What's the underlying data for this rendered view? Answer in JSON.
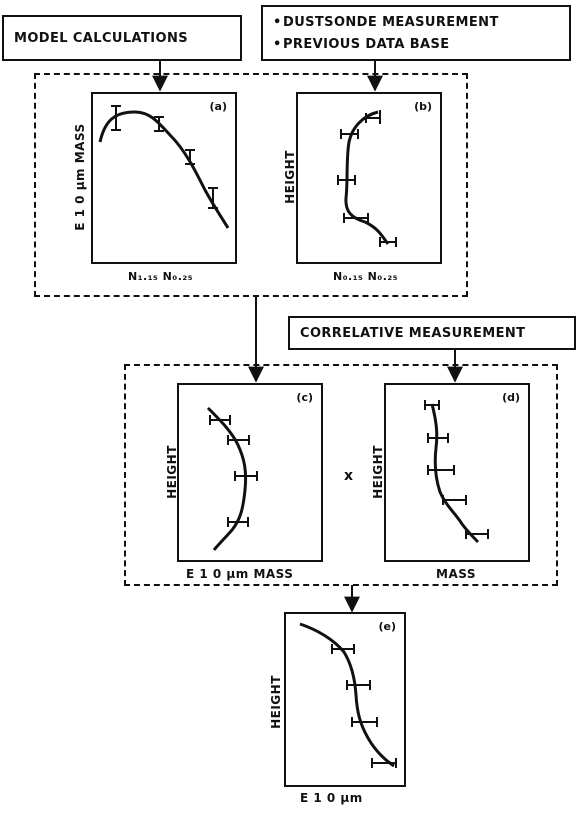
{
  "inputs": {
    "model_calculations": "MODEL CALCULATIONS",
    "dustsonde": {
      "items": [
        "DUSTSONDE MEASUREMENT",
        "PREVIOUS DATA BASE"
      ]
    },
    "correlative": "CORRELATIVE MEASUREMENT"
  },
  "panels": {
    "a": {
      "tag": "(a)",
      "ylabel": "E 1 0 μm  MASS",
      "xlabel": "N₁.₁₅ N₀.₂₅"
    },
    "b": {
      "tag": "(b)",
      "ylabel": "HEIGHT",
      "xlabel": "N₀.₁₅ N₀.₂₅"
    },
    "c": {
      "tag": "(c)",
      "ylabel": "HEIGHT",
      "xlabel": "E  1 0 μm    MASS"
    },
    "d": {
      "tag": "(d)",
      "ylabel": "HEIGHT",
      "xlabel": "MASS"
    },
    "e": {
      "tag": "(e)",
      "ylabel": "HEIGHT",
      "xlabel": "E  1 0 μm"
    }
  },
  "operator": "x"
}
